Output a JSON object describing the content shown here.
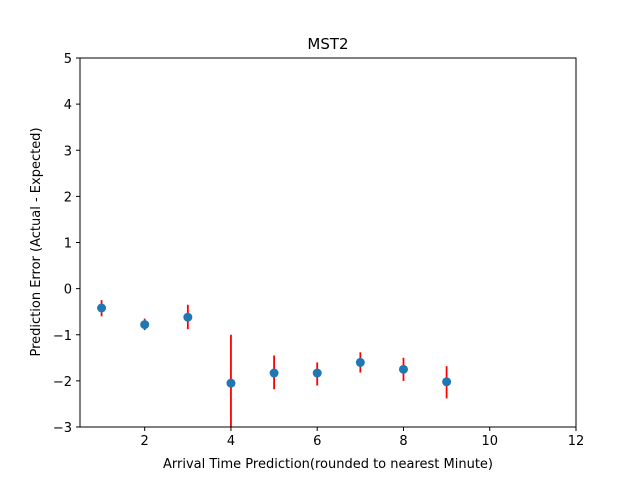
{
  "chart_data": {
    "type": "scatter",
    "title": "MST2",
    "xlabel": "Arrival Time Prediction(rounded to nearest Minute)",
    "ylabel": "Prediction Error (Actual - Expected)",
    "xlim": [
      0.5,
      12
    ],
    "ylim": [
      -3,
      5
    ],
    "xticks": [
      2,
      4,
      6,
      8,
      10,
      12
    ],
    "yticks": [
      -3,
      -2,
      -1,
      0,
      1,
      2,
      3,
      4,
      5
    ],
    "grid": false,
    "points": [
      {
        "x": 1,
        "y": -0.42,
        "err_low": -0.6,
        "err_high": -0.25
      },
      {
        "x": 2,
        "y": -0.78,
        "err_low": -0.9,
        "err_high": -0.65
      },
      {
        "x": 3,
        "y": -0.62,
        "err_low": -0.88,
        "err_high": -0.35
      },
      {
        "x": 4,
        "y": -2.05,
        "err_low": -3.0,
        "err_high": -1.0
      },
      {
        "x": 5,
        "y": -1.83,
        "err_low": -2.18,
        "err_high": -1.45
      },
      {
        "x": 6,
        "y": -1.83,
        "err_low": -2.1,
        "err_high": -1.6
      },
      {
        "x": 7,
        "y": -1.6,
        "err_low": -1.82,
        "err_high": -1.38
      },
      {
        "x": 8,
        "y": -1.75,
        "err_low": -2.0,
        "err_high": -1.5
      },
      {
        "x": 9,
        "y": -2.02,
        "err_low": -2.38,
        "err_high": -1.68
      }
    ],
    "colors": {
      "point": "#1f77b4",
      "errorbar": "#ff0000"
    }
  }
}
